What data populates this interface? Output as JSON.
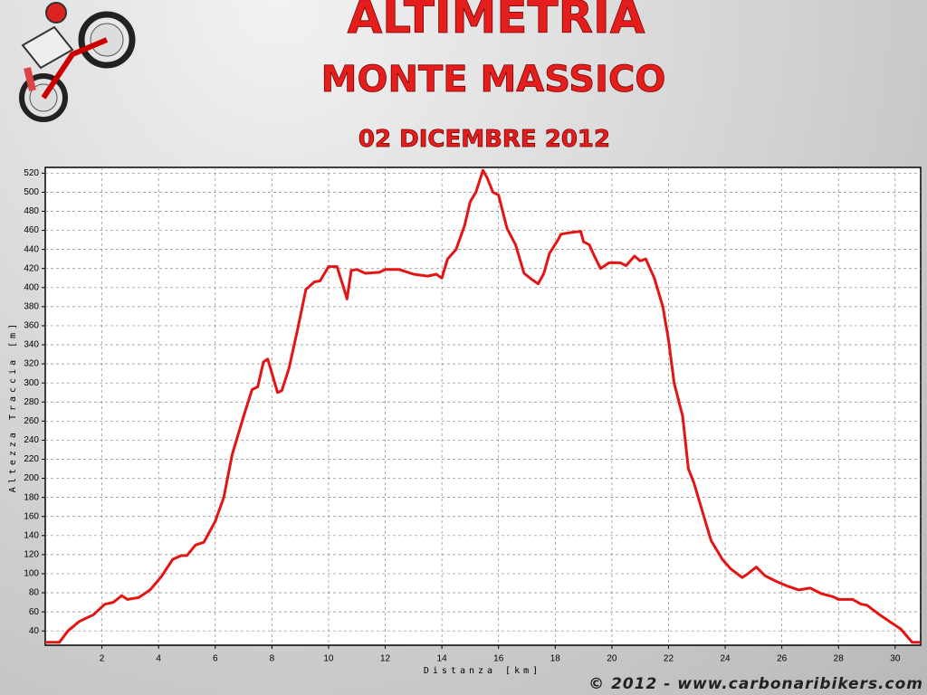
{
  "chart_data": {
    "type": "line",
    "title": "ALTIMETRIA",
    "subtitle": "MONTE MASSICO",
    "annotations": [
      "02 DICEMBRE 2012",
      "© 2012 - www.carbonaribikers.com"
    ],
    "x_label": "Distanza [km]",
    "y_label": "Altezza Traccia [m]",
    "color": "#e41414",
    "grid": true,
    "xlim": [
      0,
      30.9
    ],
    "ylim": [
      25,
      526
    ],
    "xticks": [
      2,
      4,
      6,
      8,
      10,
      12,
      14,
      16,
      18,
      20,
      22,
      24,
      26,
      28,
      30
    ],
    "yticks": [
      40,
      60,
      80,
      100,
      120,
      140,
      160,
      180,
      200,
      220,
      240,
      260,
      280,
      300,
      320,
      340,
      360,
      380,
      400,
      420,
      440,
      460,
      480,
      500,
      520
    ],
    "x": [
      0,
      0.5,
      0.8,
      1.2,
      1.7,
      2.1,
      2.4,
      2.7,
      2.9,
      3.3,
      3.7,
      4.1,
      4.5,
      4.8,
      5.0,
      5.3,
      5.6,
      6.0,
      6.3,
      6.6,
      7.0,
      7.3,
      7.5,
      7.7,
      7.85,
      8.0,
      8.2,
      8.35,
      8.6,
      8.9,
      9.2,
      9.5,
      9.7,
      10.0,
      10.3,
      10.55,
      10.65,
      10.8,
      11.0,
      11.3,
      11.8,
      12.0,
      12.5,
      13.0,
      13.5,
      13.8,
      14.0,
      14.2,
      14.5,
      14.8,
      15.0,
      15.2,
      15.45,
      15.6,
      15.8,
      16.0,
      16.3,
      16.6,
      16.9,
      17.2,
      17.4,
      17.6,
      17.8,
      18.1,
      18.2,
      18.6,
      18.9,
      19.0,
      19.2,
      19.4,
      19.6,
      19.9,
      20.3,
      20.5,
      20.8,
      21.0,
      21.2,
      21.5,
      21.8,
      22.0,
      22.2,
      22.5,
      22.7,
      22.9,
      23.2,
      23.5,
      23.9,
      24.2,
      24.6,
      24.8,
      25.1,
      25.4,
      25.8,
      26.2,
      26.6,
      27.0,
      27.4,
      27.8,
      28.0,
      28.5,
      28.8,
      29.0,
      29.4,
      29.8,
      30.2,
      30.4,
      30.6,
      30.9
    ],
    "values": [
      28,
      28,
      40,
      50,
      57,
      68,
      70,
      77,
      73,
      75,
      83,
      97,
      115,
      119,
      119,
      130,
      133,
      155,
      180,
      225,
      265,
      293,
      296,
      322,
      325,
      310,
      290,
      292,
      315,
      355,
      398,
      406,
      407,
      422,
      422,
      398,
      388,
      418,
      419,
      415,
      416,
      419,
      419,
      414,
      412,
      414,
      410,
      430,
      440,
      465,
      490,
      500,
      523,
      515,
      500,
      497,
      462,
      445,
      415,
      408,
      404,
      415,
      436,
      450,
      456,
      458,
      459,
      448,
      445,
      432,
      420,
      426,
      426,
      423,
      433,
      428,
      430,
      410,
      380,
      345,
      300,
      265,
      210,
      195,
      165,
      135,
      115,
      105,
      96,
      100,
      107,
      98,
      92,
      87,
      83,
      85,
      79,
      76,
      73,
      73,
      68,
      67,
      58,
      50,
      42,
      35,
      28,
      28
    ]
  }
}
